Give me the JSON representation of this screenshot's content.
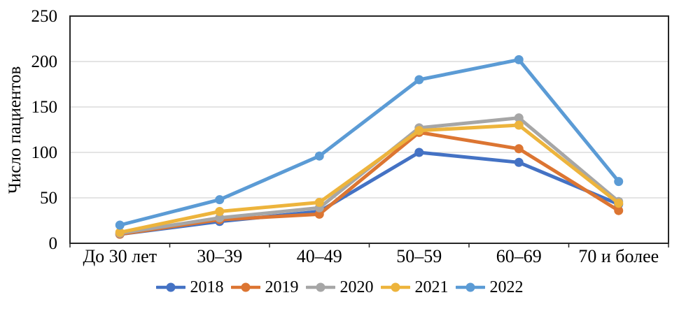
{
  "chart_data": {
    "type": "line",
    "title": "",
    "xlabel": "",
    "ylabel": "Число пациентов",
    "categories": [
      "До 30 лет",
      "30–39",
      "40–49",
      "50–59",
      "60–69",
      "70 и более"
    ],
    "ylim": [
      0,
      250
    ],
    "yticks": [
      0,
      50,
      100,
      150,
      200,
      250
    ],
    "grid": "horizontal",
    "legend_position": "bottom",
    "marker": "circle",
    "series": [
      {
        "name": "2018",
        "color": "#4472C4",
        "values": [
          10,
          24,
          35,
          100,
          89,
          43
        ]
      },
      {
        "name": "2019",
        "color": "#DC7532",
        "values": [
          10,
          26,
          32,
          122,
          104,
          36
        ]
      },
      {
        "name": "2020",
        "color": "#A6A6A6",
        "values": [
          11,
          28,
          39,
          127,
          138,
          46
        ]
      },
      {
        "name": "2021",
        "color": "#EDB43C",
        "values": [
          12,
          35,
          45,
          124,
          130,
          44
        ]
      },
      {
        "name": "2022",
        "color": "#5B9BD5",
        "values": [
          20,
          48,
          96,
          180,
          202,
          68
        ]
      }
    ],
    "style": {
      "gridline_color": "#C9C9C9",
      "axis_border_color": "#262626",
      "background": "#FFFFFF"
    }
  }
}
